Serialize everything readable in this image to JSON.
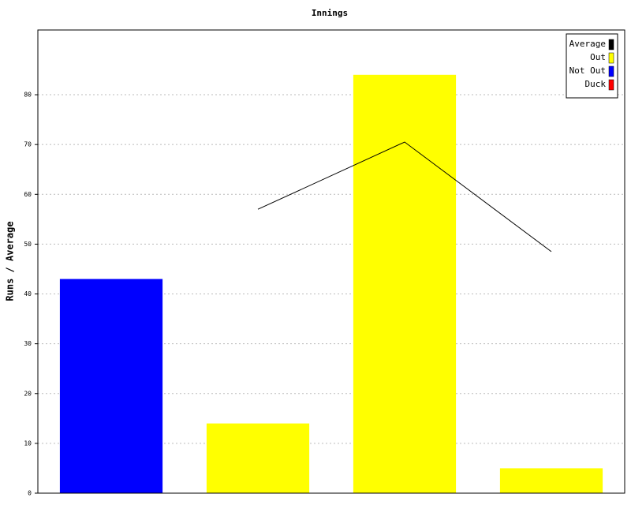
{
  "chart_data": {
    "type": "bar",
    "title": "Innings",
    "y_label": "Runs / Average",
    "categories": [
      null,
      null,
      null,
      null
    ],
    "series": [
      {
        "name": "Average",
        "color": "#000000",
        "type": "line",
        "values": [
          null,
          57,
          70.5,
          48.5
        ]
      },
      {
        "name": "Out",
        "color": "#ffff00",
        "values": [
          null,
          14,
          84,
          5
        ]
      },
      {
        "name": "Not Out",
        "color": "#0000ff",
        "values": [
          43,
          null,
          null,
          null
        ]
      },
      {
        "name": "Duck",
        "color": "#ff0000",
        "values": [
          null,
          null,
          null,
          null
        ]
      }
    ],
    "ylim": [
      0,
      93
    ],
    "yticks": [
      0,
      10,
      20,
      30,
      40,
      50,
      60,
      70,
      80
    ],
    "grid": true,
    "legend": "upper right"
  }
}
